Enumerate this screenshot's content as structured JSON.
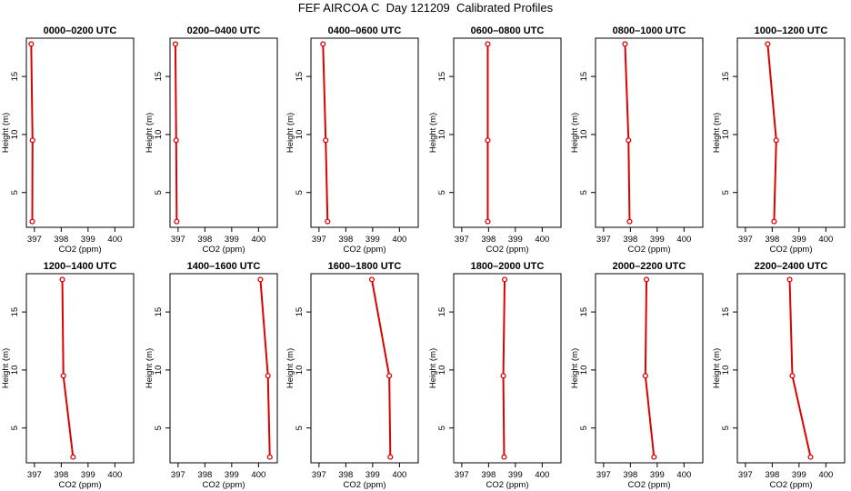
{
  "title": "FEF AIRCOA C  Day 121209  Calibrated Profiles",
  "chart_data": {
    "type": "line",
    "xlabel": "CO2 (ppm)",
    "ylabel": "Height (m)",
    "xlim": [
      396.7,
      400.7
    ],
    "ylim": [
      2,
      18.3
    ],
    "x_ticks": [
      397,
      398,
      399,
      400
    ],
    "y_ticks": [
      5,
      10,
      15
    ],
    "line_color": "#dd0000",
    "grid": false,
    "heights": [
      2.5,
      9.5,
      17.8
    ],
    "panels": [
      {
        "title": "0000–0200 UTC",
        "co2": [
          396.92,
          396.93,
          396.88
        ]
      },
      {
        "title": "0200–0400 UTC",
        "co2": [
          396.95,
          396.93,
          396.9
        ]
      },
      {
        "title": "0400–0600 UTC",
        "co2": [
          397.32,
          397.25,
          397.15
        ]
      },
      {
        "title": "0600–0800 UTC",
        "co2": [
          397.97,
          397.97,
          397.97
        ]
      },
      {
        "title": "0800–1000 UTC",
        "co2": [
          397.97,
          397.93,
          397.8
        ]
      },
      {
        "title": "1000–1200 UTC",
        "co2": [
          398.07,
          398.15,
          397.83
        ]
      },
      {
        "title": "1200–1400 UTC",
        "co2": [
          398.44,
          398.08,
          398.04
        ]
      },
      {
        "title": "1400–1600 UTC",
        "co2": [
          400.42,
          400.35,
          400.07
        ]
      },
      {
        "title": "1600–1800 UTC",
        "co2": [
          399.66,
          399.62,
          398.97
        ]
      },
      {
        "title": "1800–2000 UTC",
        "co2": [
          398.58,
          398.55,
          398.6
        ]
      },
      {
        "title": "2000–2200 UTC",
        "co2": [
          398.88,
          398.56,
          398.6
        ]
      },
      {
        "title": "2200–2400 UTC",
        "co2": [
          399.43,
          398.75,
          398.65
        ]
      }
    ]
  }
}
